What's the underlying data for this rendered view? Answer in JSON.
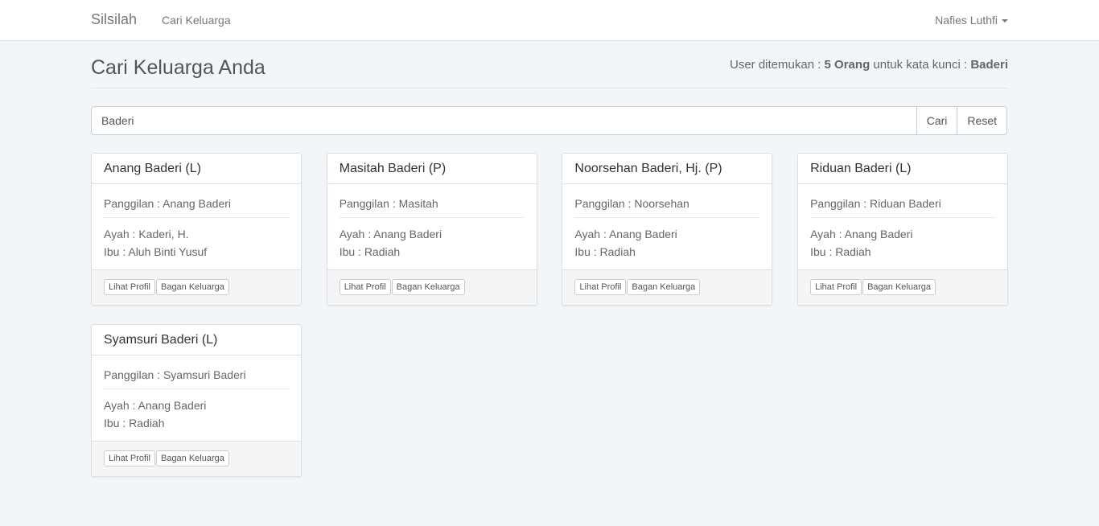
{
  "navbar": {
    "brand": "Silsilah",
    "link": "Cari Keluarga",
    "user": "Nafies Luthfi"
  },
  "header": {
    "title": "Cari Keluarga Anda",
    "result_prefix": "User ditemukan : ",
    "result_count": "5 Orang",
    "result_mid": " untuk kata kunci : ",
    "result_keyword": "Baderi"
  },
  "search": {
    "value": "Baderi",
    "search_label": "Cari",
    "reset_label": "Reset"
  },
  "card_buttons": {
    "profile": "Lihat Profil",
    "tree": "Bagan Keluarga"
  },
  "cards": [
    {
      "name": "Anang Baderi (L)",
      "nickname": "Panggilan : Anang Baderi",
      "father": "Ayah : Kaderi, H.",
      "mother": "Ibu : Aluh Binti Yusuf"
    },
    {
      "name": "Masitah Baderi (P)",
      "nickname": "Panggilan : Masitah",
      "father": "Ayah : Anang Baderi",
      "mother": "Ibu : Radiah"
    },
    {
      "name": "Noorsehan Baderi, Hj. (P)",
      "nickname": "Panggilan : Noorsehan",
      "father": "Ayah : Anang Baderi",
      "mother": "Ibu : Radiah"
    },
    {
      "name": "Riduan Baderi (L)",
      "nickname": "Panggilan : Riduan Baderi",
      "father": "Ayah : Anang Baderi",
      "mother": "Ibu : Radiah"
    },
    {
      "name": "Syamsuri Baderi (L)",
      "nickname": "Panggilan : Syamsuri Baderi",
      "father": "Ayah : Anang Baderi",
      "mother": "Ibu : Radiah"
    }
  ]
}
